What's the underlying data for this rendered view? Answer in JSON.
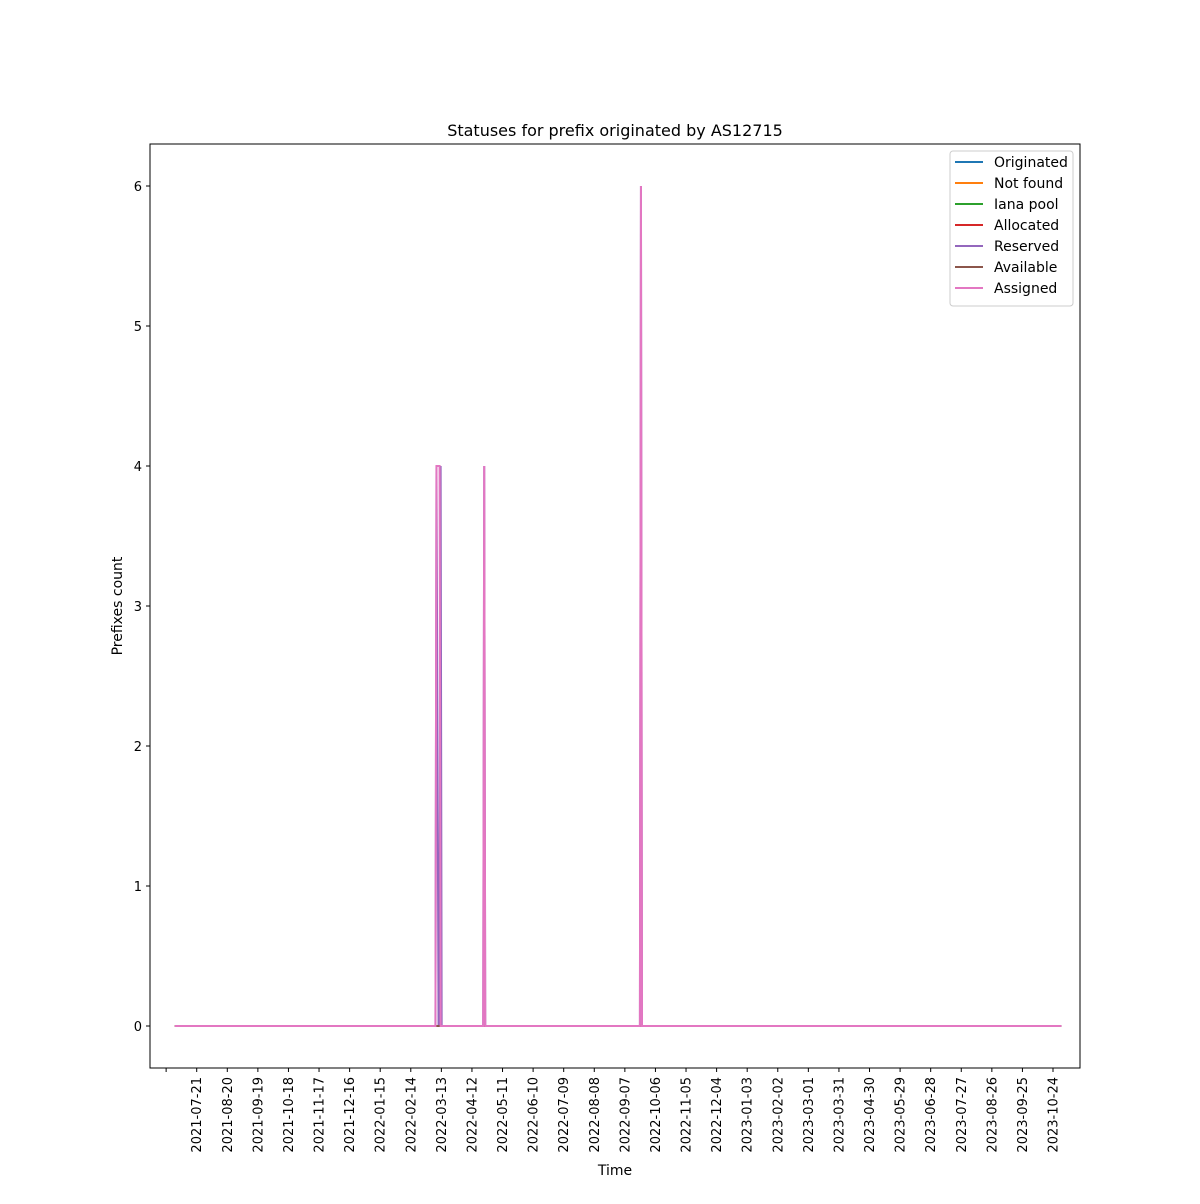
{
  "chart_data": {
    "type": "line",
    "title": "Statuses for prefix originated by AS12715",
    "xlabel": "Time",
    "ylabel": "Prefixes count",
    "ylim": [
      -0.3,
      6.3
    ],
    "y_ticks": [
      0,
      1,
      2,
      3,
      4,
      5,
      6
    ],
    "x_tick_labels": [
      "2021-07-21",
      "2021-08-20",
      "2021-09-19",
      "2021-10-18",
      "2021-11-17",
      "2021-12-16",
      "2022-01-15",
      "2022-02-14",
      "2022-03-13",
      "2022-04-12",
      "2022-05-11",
      "2022-06-10",
      "2022-07-09",
      "2022-08-08",
      "2022-09-07",
      "2022-10-06",
      "2022-11-05",
      "2022-12-04",
      "2023-01-03",
      "2023-02-02",
      "2023-03-01",
      "2023-03-31",
      "2023-04-30",
      "2023-05-29",
      "2023-06-28",
      "2023-07-27",
      "2023-08-26",
      "2023-09-25",
      "2023-10-24"
    ],
    "x_range": [
      "2021-06-06",
      "2023-11-19"
    ],
    "grid": false,
    "legend_position": "top-right",
    "colors": {
      "Originated": "#1f77b4",
      "Not found": "#ff7f0e",
      "Iana pool": "#2ca02c",
      "Allocated": "#d62728",
      "Reserved": "#9467bd",
      "Available": "#8c564b",
      "Assigned": "#e377c2"
    },
    "series": [
      {
        "name": "Originated",
        "points": [
          [
            "2021-06-30",
            0
          ],
          [
            "2023-11-01",
            0
          ]
        ]
      },
      {
        "name": "Not found",
        "points": [
          [
            "2021-06-30",
            0
          ],
          [
            "2023-11-01",
            0
          ]
        ]
      },
      {
        "name": "Iana pool",
        "points": [
          [
            "2021-06-30",
            0
          ],
          [
            "2023-11-01",
            0
          ]
        ]
      },
      {
        "name": "Allocated",
        "points": [
          [
            "2021-06-30",
            0
          ],
          [
            "2023-11-01",
            0
          ]
        ]
      },
      {
        "name": "Reserved",
        "points": [
          [
            "2021-06-30",
            0
          ],
          [
            "2022-03-08",
            0
          ],
          [
            "2022-03-09",
            4
          ],
          [
            "2022-03-11",
            0
          ],
          [
            "2022-03-12",
            0
          ],
          [
            "2022-03-13",
            4
          ],
          [
            "2022-03-14",
            0
          ],
          [
            "2022-04-23",
            0
          ],
          [
            "2022-04-24",
            4
          ],
          [
            "2022-04-25",
            0
          ],
          [
            "2022-09-21",
            0
          ],
          [
            "2022-09-22",
            6
          ],
          [
            "2022-09-23",
            0
          ],
          [
            "2023-11-01",
            0
          ]
        ]
      },
      {
        "name": "Available",
        "points": [
          [
            "2021-06-30",
            0
          ],
          [
            "2023-11-01",
            0
          ]
        ]
      },
      {
        "name": "Assigned",
        "points": [
          [
            "2021-06-30",
            0
          ],
          [
            "2022-03-08",
            0
          ],
          [
            "2022-03-09",
            4
          ],
          [
            "2022-03-12",
            4
          ],
          [
            "2022-03-13",
            0
          ],
          [
            "2022-04-23",
            0
          ],
          [
            "2022-04-24",
            4
          ],
          [
            "2022-04-25",
            0
          ],
          [
            "2022-09-21",
            0
          ],
          [
            "2022-09-22",
            6
          ],
          [
            "2022-09-23",
            0
          ],
          [
            "2023-11-01",
            0
          ]
        ]
      }
    ]
  }
}
